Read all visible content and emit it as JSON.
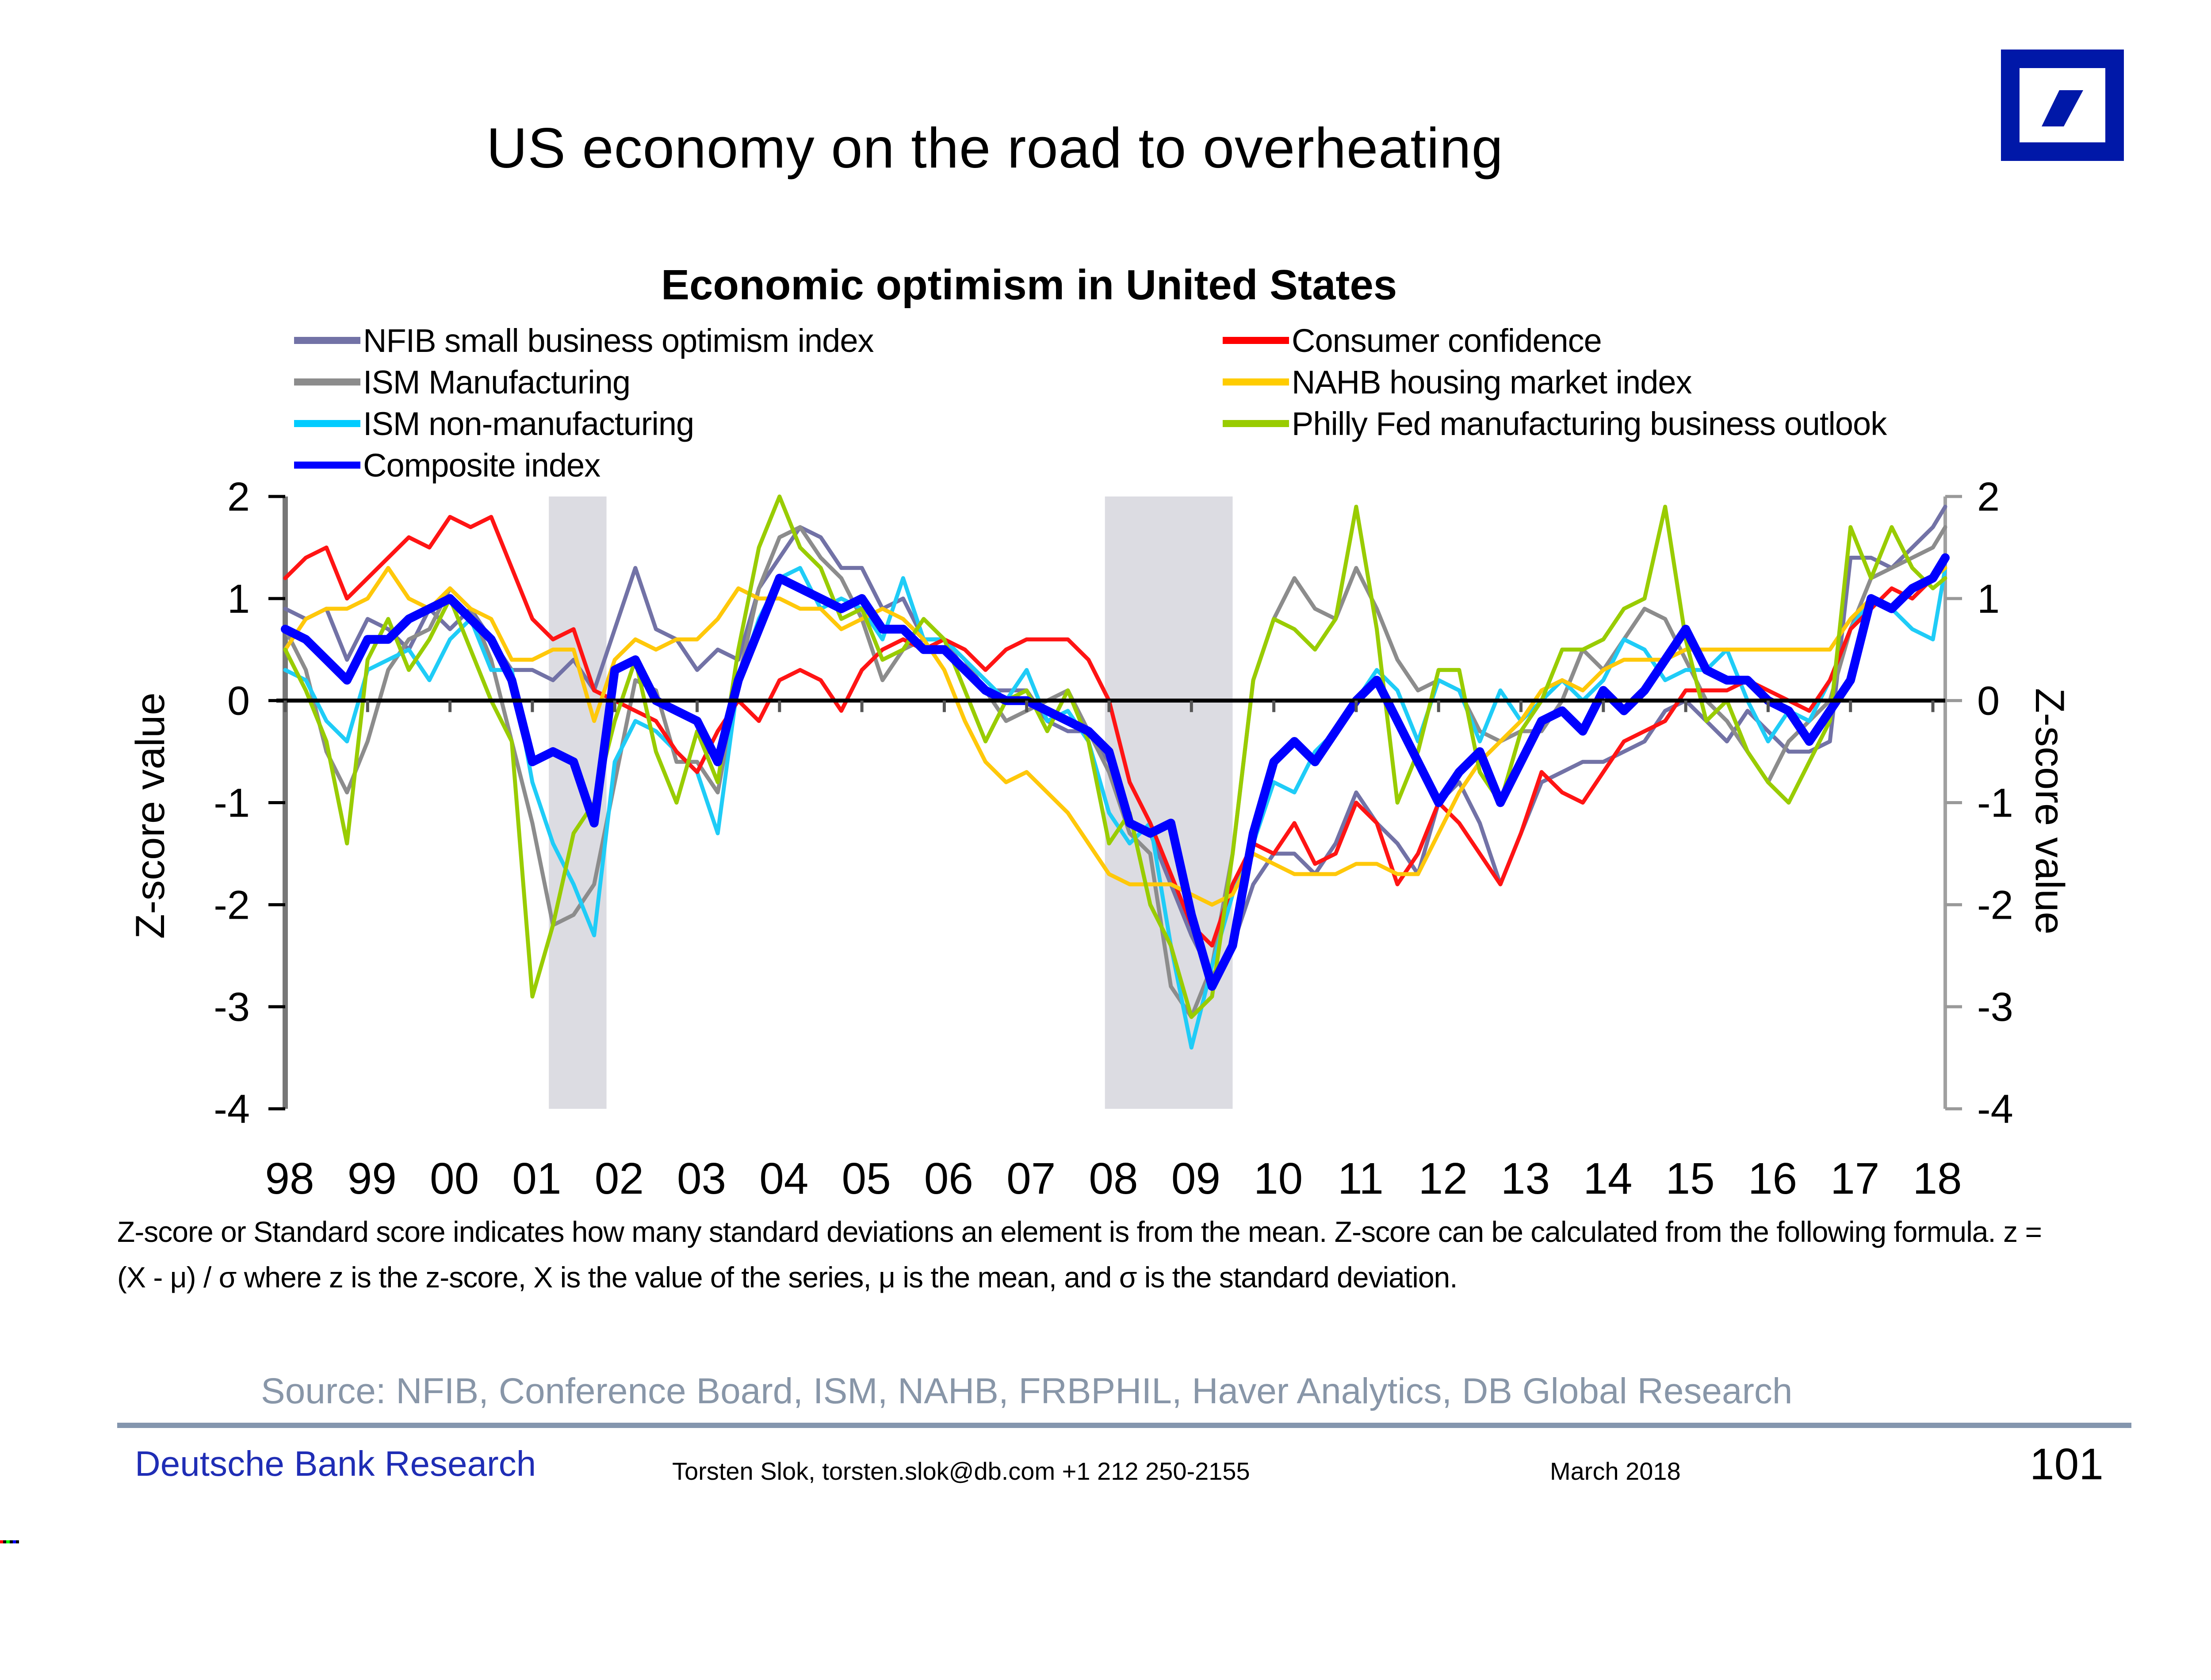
{
  "slide": {
    "title": "US economy on the road to overheating",
    "page_number": "101",
    "logo": "deutsche-bank-logo",
    "brand_color": "#0018A8"
  },
  "chart_data": {
    "type": "line",
    "title": "Economic optimism in United States",
    "xlabel": "",
    "ylabel": "Z-score value",
    "ylabel_right": "Z-score value",
    "ylim": [
      -4,
      2
    ],
    "xlim": [
      1998.0,
      2018.15
    ],
    "yticks": [
      "2",
      "1",
      "0",
      "-1",
      "-2",
      "-3",
      "-4"
    ],
    "ytick_values": [
      2,
      1,
      0,
      -1,
      -2,
      -3,
      -4
    ],
    "xticks": [
      "98",
      "99",
      "00",
      "01",
      "02",
      "03",
      "04",
      "05",
      "06",
      "07",
      "08",
      "09",
      "10",
      "11",
      "12",
      "13",
      "14",
      "15",
      "16",
      "17",
      "18"
    ],
    "xtick_values": [
      1998,
      1999,
      2000,
      2001,
      2002,
      2003,
      2004,
      2005,
      2006,
      2007,
      2008,
      2009,
      2010,
      2011,
      2012,
      2013,
      2014,
      2015,
      2016,
      2017,
      2018
    ],
    "grid": false,
    "legend_position": "top",
    "recessions": [
      {
        "start": 2001.2,
        "end": 2001.9
      },
      {
        "start": 2007.95,
        "end": 2009.5
      }
    ],
    "x": [
      1998.0,
      1998.25,
      1998.5,
      1998.75,
      1999.0,
      1999.25,
      1999.5,
      1999.75,
      2000.0,
      2000.25,
      2000.5,
      2000.75,
      2001.0,
      2001.25,
      2001.5,
      2001.75,
      2002.0,
      2002.25,
      2002.5,
      2002.75,
      2003.0,
      2003.25,
      2003.5,
      2003.75,
      2004.0,
      2004.25,
      2004.5,
      2004.75,
      2005.0,
      2005.25,
      2005.5,
      2005.75,
      2006.0,
      2006.25,
      2006.5,
      2006.75,
      2007.0,
      2007.25,
      2007.5,
      2007.75,
      2008.0,
      2008.25,
      2008.5,
      2008.75,
      2009.0,
      2009.25,
      2009.5,
      2009.75,
      2010.0,
      2010.25,
      2010.5,
      2010.75,
      2011.0,
      2011.25,
      2011.5,
      2011.75,
      2012.0,
      2012.25,
      2012.5,
      2012.75,
      2013.0,
      2013.25,
      2013.5,
      2013.75,
      2014.0,
      2014.25,
      2014.5,
      2014.75,
      2015.0,
      2015.25,
      2015.5,
      2015.75,
      2016.0,
      2016.25,
      2016.5,
      2016.75,
      2017.0,
      2017.25,
      2017.5,
      2017.75,
      2018.0,
      2018.15
    ],
    "series": [
      {
        "name": "NFIB small business optimism index",
        "color": "#7272A6",
        "width": "thin",
        "values": [
          0.9,
          0.8,
          0.9,
          0.4,
          0.8,
          0.7,
          0.5,
          0.9,
          0.7,
          0.9,
          0.6,
          0.3,
          0.3,
          0.2,
          0.4,
          0.1,
          0.7,
          1.3,
          0.7,
          0.6,
          0.3,
          0.5,
          0.4,
          1.1,
          1.4,
          1.7,
          1.6,
          1.3,
          1.3,
          0.9,
          1.0,
          0.6,
          0.6,
          0.3,
          0.1,
          0.1,
          0.1,
          -0.2,
          -0.3,
          -0.3,
          -0.6,
          -1.2,
          -1.3,
          -1.8,
          -2.3,
          -2.7,
          -2.4,
          -1.8,
          -1.5,
          -1.5,
          -1.7,
          -1.4,
          -0.9,
          -1.2,
          -1.4,
          -1.7,
          -1.0,
          -0.8,
          -1.2,
          -1.8,
          -1.3,
          -0.8,
          -0.7,
          -0.6,
          -0.6,
          -0.5,
          -0.4,
          -0.1,
          0.0,
          -0.2,
          -0.4,
          -0.1,
          -0.3,
          -0.5,
          -0.5,
          -0.4,
          1.4,
          1.4,
          1.3,
          1.5,
          1.7,
          1.9
        ]
      },
      {
        "name": "ISM Manufacturing",
        "color": "#8C8C8C",
        "width": "thin",
        "values": [
          0.7,
          0.3,
          -0.5,
          -0.9,
          -0.4,
          0.3,
          0.6,
          0.7,
          1.1,
          0.9,
          0.4,
          -0.4,
          -1.2,
          -2.2,
          -2.1,
          -1.8,
          -0.8,
          0.2,
          0.1,
          -0.6,
          -0.6,
          -0.9,
          0.2,
          1.1,
          1.6,
          1.7,
          1.4,
          1.2,
          0.8,
          0.2,
          0.5,
          0.6,
          0.6,
          0.4,
          0.1,
          -0.2,
          -0.1,
          0.0,
          0.1,
          -0.3,
          -0.7,
          -1.3,
          -1.5,
          -2.8,
          -3.1,
          -2.6,
          -1.5,
          0.2,
          0.8,
          1.2,
          0.9,
          0.8,
          1.3,
          0.9,
          0.4,
          0.1,
          0.2,
          0.1,
          -0.3,
          -0.4,
          -0.3,
          -0.3,
          0.0,
          0.5,
          0.3,
          0.6,
          0.9,
          0.8,
          0.4,
          0.0,
          -0.2,
          -0.5,
          -0.8,
          -0.4,
          -0.2,
          0.0,
          0.7,
          1.2,
          1.3,
          1.4,
          1.5,
          1.7
        ]
      },
      {
        "name": "ISM non-manufacturing",
        "color": "#1FCCF7",
        "width": "thin",
        "values": [
          0.3,
          0.2,
          -0.2,
          -0.4,
          0.3,
          0.4,
          0.5,
          0.2,
          0.6,
          0.8,
          0.3,
          0.3,
          -0.8,
          -1.4,
          -1.8,
          -2.3,
          -0.6,
          -0.2,
          -0.3,
          -0.5,
          -0.7,
          -1.3,
          0.2,
          0.8,
          1.2,
          1.3,
          0.9,
          1.0,
          0.9,
          0.6,
          1.2,
          0.6,
          0.6,
          0.4,
          0.2,
          0.0,
          0.3,
          -0.2,
          -0.1,
          -0.4,
          -1.1,
          -1.4,
          -1.2,
          -2.4,
          -3.4,
          -2.6,
          -1.9,
          -1.4,
          -0.8,
          -0.9,
          -0.5,
          -0.3,
          0.0,
          0.3,
          0.1,
          -0.4,
          0.2,
          0.1,
          -0.4,
          0.1,
          -0.2,
          0.0,
          0.2,
          0.0,
          0.2,
          0.6,
          0.5,
          0.2,
          0.3,
          0.3,
          0.5,
          0.0,
          -0.4,
          -0.1,
          -0.2,
          0.2,
          0.7,
          1.0,
          0.9,
          0.7,
          0.6,
          1.3
        ]
      },
      {
        "name": "Composite index",
        "color": "#0000FF",
        "width": "thick",
        "values": [
          0.7,
          0.6,
          0.4,
          0.2,
          0.6,
          0.6,
          0.8,
          0.9,
          1.0,
          0.8,
          0.6,
          0.2,
          -0.6,
          -0.5,
          -0.6,
          -1.2,
          0.3,
          0.4,
          0.0,
          -0.1,
          -0.2,
          -0.6,
          0.2,
          0.7,
          1.2,
          1.1,
          1.0,
          0.9,
          1.0,
          0.7,
          0.7,
          0.5,
          0.5,
          0.3,
          0.1,
          0.0,
          0.0,
          -0.1,
          -0.2,
          -0.3,
          -0.5,
          -1.2,
          -1.3,
          -1.2,
          -2.1,
          -2.8,
          -2.4,
          -1.3,
          -0.6,
          -0.4,
          -0.6,
          -0.3,
          0.0,
          0.2,
          -0.2,
          -0.6,
          -1.0,
          -0.7,
          -0.5,
          -1.0,
          -0.6,
          -0.2,
          -0.1,
          -0.3,
          0.1,
          -0.1,
          0.1,
          0.4,
          0.7,
          0.3,
          0.2,
          0.2,
          0.0,
          -0.1,
          -0.4,
          -0.1,
          0.2,
          1.0,
          0.9,
          1.1,
          1.2,
          1.4
        ]
      },
      {
        "name": "Consumer confidence",
        "color": "#FF1414",
        "width": "thin",
        "values": [
          1.2,
          1.4,
          1.5,
          1.0,
          1.2,
          1.4,
          1.6,
          1.5,
          1.8,
          1.7,
          1.8,
          1.3,
          0.8,
          0.6,
          0.7,
          0.1,
          0.0,
          -0.1,
          -0.2,
          -0.5,
          -0.7,
          -0.3,
          0.0,
          -0.2,
          0.2,
          0.3,
          0.2,
          -0.1,
          0.3,
          0.5,
          0.6,
          0.5,
          0.6,
          0.5,
          0.3,
          0.5,
          0.6,
          0.6,
          0.6,
          0.4,
          0.0,
          -0.8,
          -1.2,
          -1.7,
          -2.2,
          -2.4,
          -1.8,
          -1.4,
          -1.5,
          -1.2,
          -1.6,
          -1.5,
          -1.0,
          -1.2,
          -1.8,
          -1.5,
          -1.0,
          -1.2,
          -1.5,
          -1.8,
          -1.3,
          -0.7,
          -0.9,
          -1.0,
          -0.7,
          -0.4,
          -0.3,
          -0.2,
          0.1,
          0.1,
          0.1,
          0.2,
          0.1,
          0.0,
          -0.1,
          0.2,
          0.7,
          0.9,
          1.1,
          1.0,
          1.2,
          1.4
        ]
      },
      {
        "name": "NAHB housing market index",
        "color": "#FFC80A",
        "width": "thin",
        "values": [
          0.5,
          0.8,
          0.9,
          0.9,
          1.0,
          1.3,
          1.0,
          0.9,
          1.1,
          0.9,
          0.8,
          0.4,
          0.4,
          0.5,
          0.5,
          -0.2,
          0.4,
          0.6,
          0.5,
          0.6,
          0.6,
          0.8,
          1.1,
          1.0,
          1.0,
          0.9,
          0.9,
          0.7,
          0.8,
          0.9,
          0.8,
          0.6,
          0.3,
          -0.2,
          -0.6,
          -0.8,
          -0.7,
          -0.9,
          -1.1,
          -1.4,
          -1.7,
          -1.8,
          -1.8,
          -1.8,
          -1.9,
          -2.0,
          -1.9,
          -1.5,
          -1.6,
          -1.7,
          -1.7,
          -1.7,
          -1.6,
          -1.6,
          -1.7,
          -1.7,
          -1.3,
          -0.9,
          -0.6,
          -0.4,
          -0.2,
          0.1,
          0.2,
          0.1,
          0.3,
          0.4,
          0.4,
          0.4,
          0.5,
          0.5,
          0.5,
          0.5,
          0.5,
          0.5,
          0.5,
          0.5,
          0.8,
          1.0,
          0.9,
          1.1,
          1.2,
          1.3
        ]
      },
      {
        "name": "Philly Fed manufacturing business outlook",
        "color": "#99CC00",
        "width": "thin",
        "values": [
          0.5,
          0.1,
          -0.4,
          -1.4,
          0.4,
          0.8,
          0.3,
          0.6,
          1.0,
          0.5,
          0.0,
          -0.4,
          -2.9,
          -2.2,
          -1.3,
          -1.0,
          -0.2,
          0.4,
          -0.5,
          -1.0,
          -0.3,
          -0.8,
          0.5,
          1.5,
          2.0,
          1.5,
          1.3,
          0.8,
          0.9,
          0.4,
          0.5,
          0.8,
          0.6,
          0.1,
          -0.4,
          0.0,
          0.1,
          -0.3,
          0.1,
          -0.4,
          -1.4,
          -1.1,
          -2.0,
          -2.4,
          -3.1,
          -2.9,
          -1.5,
          0.2,
          0.8,
          0.7,
          0.5,
          0.8,
          1.9,
          0.7,
          -1.0,
          -0.5,
          0.3,
          0.3,
          -0.7,
          -1.0,
          -0.3,
          0.0,
          0.5,
          0.5,
          0.6,
          0.9,
          1.0,
          1.9,
          0.6,
          -0.2,
          0.0,
          -0.5,
          -0.8,
          -1.0,
          -0.6,
          -0.2,
          1.7,
          1.2,
          1.7,
          1.3,
          1.1,
          1.2
        ]
      }
    ]
  },
  "note": {
    "text": "Z-score or Standard score indicates how many standard deviations an element is from the mean. Z-score can be calculated from the following formula. z = (X - μ) / σ where z is the z-score, X is the value of the series, μ is the mean, and σ is the standard deviation."
  },
  "source": "Source: NFIB, Conference Board, ISM, NAHB, FRBPHIL, Haver Analytics, DB Global Research",
  "footer": {
    "brand": "Deutsche Bank Research",
    "contact": "Torsten Slok, torsten.slok@db.com  +1 212 250-2155",
    "date": "March 2018"
  }
}
